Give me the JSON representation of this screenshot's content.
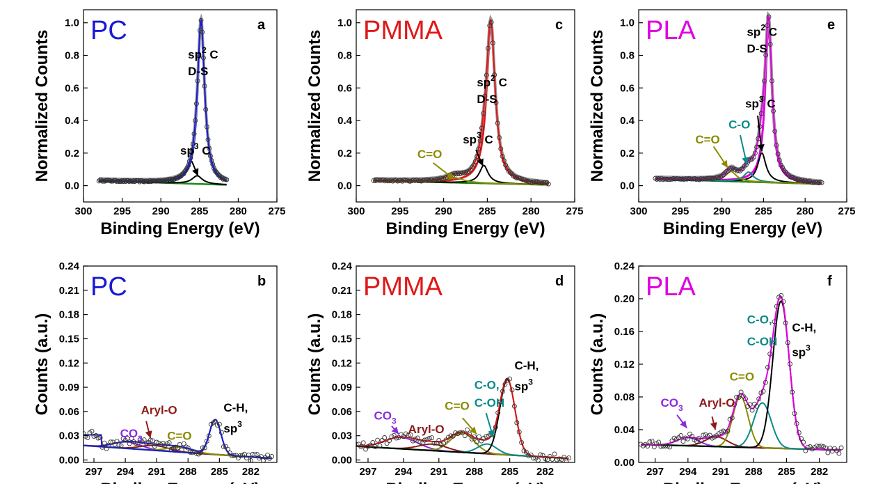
{
  "chart_data": [
    {
      "panel": "a",
      "type": "line",
      "polymer": "PC",
      "polymer_color": "#1a1ad6",
      "xlabel": "Binding Energy (eV)",
      "ylabel": "Normalized Counts",
      "xlim": [
        300,
        275
      ],
      "ylim": [
        -0.1,
        1.08
      ],
      "xticks": [
        300,
        295,
        290,
        285,
        280,
        275
      ],
      "xtick_labels": [
        "300",
        "295",
        "290",
        "285",
        "280",
        "275"
      ],
      "yticks": [
        0.0,
        0.2,
        0.4,
        0.6,
        0.8,
        1.0
      ],
      "ytick_labels": [
        "0.0",
        "0.2",
        "0.4",
        "0.6",
        "0.8",
        "1.0"
      ],
      "fit_color": "#1a1ad6",
      "baseline": [
        0.03,
        0.005
      ],
      "data_range": [
        298,
        281.5
      ],
      "peaks": [
        {
          "label": "sp2 C D-S",
          "center": 284.8,
          "amp": 0.97,
          "width": 0.55,
          "color": "#1a1ad6"
        },
        {
          "label": "sp3 C",
          "center": 285.3,
          "amp": 0.05,
          "width": 0.8,
          "color": "#000000"
        }
      ],
      "annotations": [
        {
          "key": "sp2",
          "text": "sp",
          "sup": "2",
          "after": " C",
          "line2": "D-S",
          "color": "#000000",
          "x": 286.5,
          "y": 0.78
        },
        {
          "key": "sp3",
          "text": "sp",
          "sup": "3",
          "after": " C",
          "color": "#000000",
          "x": 287.5,
          "y": 0.19,
          "arrow": [
            286,
            0.15,
            285.2,
            0.06
          ],
          "arrow_color": "#000000"
        }
      ]
    },
    {
      "panel": "b",
      "type": "line",
      "polymer": "PC",
      "polymer_color": "#1a1ad6",
      "xlabel": "Binding Energy (eV)",
      "ylabel": "Counts (a.u.)",
      "xlim": [
        298,
        279.5
      ],
      "ylim": [
        -0.003,
        0.24
      ],
      "xticks": [
        297,
        294,
        291,
        288,
        285,
        282
      ],
      "xtick_labels": [
        "297",
        "294",
        "291",
        "288",
        "285",
        "282"
      ],
      "yticks": [
        0.0,
        0.03,
        0.06,
        0.09,
        0.12,
        0.15,
        0.18,
        0.21,
        0.24
      ],
      "ytick_labels": [
        "0.00",
        "0.03",
        "0.06",
        "0.09",
        "0.12",
        "0.15",
        "0.18",
        "0.21",
        "0.24"
      ],
      "fit_color": "#1a1ad6",
      "baseline": [
        0.018,
        0.002
      ],
      "data_range": [
        298,
        280
      ],
      "peaks": [
        {
          "label": "CO3",
          "center": 293.8,
          "amp": 0.008,
          "width": 1.3,
          "color": "#8a2be2"
        },
        {
          "label": "Aryl-O",
          "center": 291.2,
          "amp": 0.006,
          "width": 1.3,
          "color": "#8b1a1a"
        },
        {
          "label": "C=O",
          "center": 288.7,
          "amp": 0.006,
          "width": 1.2,
          "color": "#8b8b00"
        },
        {
          "label": "C-H, sp3",
          "center": 285.4,
          "amp": 0.043,
          "width": 0.55,
          "color": "#1a1ad6"
        }
      ],
      "step": {
        "x_end": 296.3,
        "y_high": 0.031
      },
      "annotations": [
        {
          "key": "co3",
          "text": "CO",
          "sub": "3",
          "color": "#8a2be2",
          "x": 294.5,
          "y": 0.028
        },
        {
          "key": "arylo",
          "text": "Aryl-O",
          "color": "#8b1a1a",
          "x": 292.5,
          "y": 0.057,
          "arrow": [
            292.0,
            0.048,
            291.6,
            0.027
          ],
          "arrow_color": "#8b1a1a"
        },
        {
          "key": "co",
          "text": "C=O",
          "color": "#8b8b00",
          "x": 290.0,
          "y": 0.025
        },
        {
          "key": "ch",
          "text": "C-H,",
          "color": "#000000",
          "x": 284.6,
          "y": 0.06
        },
        {
          "key": "sp3b",
          "text": "sp",
          "sup": "3",
          "color": "#000000",
          "x": 284.6,
          "y": 0.034
        }
      ]
    },
    {
      "panel": "c",
      "type": "line",
      "polymer": "PMMA",
      "polymer_color": "#e01818",
      "xlabel": "Binding Energy (eV)",
      "ylabel": "Normalized Counts",
      "xlim": [
        300,
        275
      ],
      "ylim": [
        -0.1,
        1.08
      ],
      "xticks": [
        300,
        295,
        290,
        285,
        280,
        275
      ],
      "xtick_labels": [
        "300",
        "295",
        "290",
        "285",
        "280",
        "275"
      ],
      "yticks": [
        0.0,
        0.2,
        0.4,
        0.6,
        0.8,
        1.0
      ],
      "ytick_labels": [
        "0.0",
        "0.2",
        "0.4",
        "0.6",
        "0.8",
        "1.0"
      ],
      "fit_color": "#e01818",
      "baseline": [
        0.03,
        0.005
      ],
      "data_range": [
        298,
        278
      ],
      "peaks": [
        {
          "label": "sp2 C D-S",
          "center": 284.6,
          "amp": 0.96,
          "width": 0.6,
          "color": "#e01818"
        },
        {
          "label": "sp3 C",
          "center": 285.4,
          "amp": 0.11,
          "width": 0.6,
          "color": "#000000"
        },
        {
          "label": "C=O",
          "center": 288.7,
          "amp": 0.03,
          "width": 1.2,
          "color": "#8b8b00"
        }
      ],
      "annotations": [
        {
          "key": "sp2",
          "text": "sp",
          "sup": "2",
          "after": " C",
          "line2": "D-S",
          "color": "#000000",
          "x": 286.2,
          "y": 0.61
        },
        {
          "key": "sp3",
          "text": "sp",
          "sup": "3",
          "after": " C",
          "color": "#000000",
          "x": 287.8,
          "y": 0.26,
          "arrow": [
            286.3,
            0.22,
            285.5,
            0.12
          ],
          "arrow_color": "#000000"
        },
        {
          "key": "co",
          "text": "C=O",
          "color": "#8b8b00",
          "x": 293.0,
          "y": 0.17,
          "arrow": [
            291.2,
            0.14,
            288.8,
            0.04
          ],
          "arrow_color": "#8b8b00"
        }
      ]
    },
    {
      "panel": "d",
      "type": "line",
      "polymer": "PMMA",
      "polymer_color": "#e01818",
      "xlabel": "Binding Energy (eV)",
      "ylabel": "Counts (a.u.)",
      "xlim": [
        298,
        279.5
      ],
      "ylim": [
        -0.003,
        0.24
      ],
      "xticks": [
        297,
        294,
        291,
        288,
        285,
        282
      ],
      "xtick_labels": [
        "297",
        "294",
        "291",
        "288",
        "285",
        "282"
      ],
      "yticks": [
        0.0,
        0.03,
        0.06,
        0.09,
        0.12,
        0.15,
        0.18,
        0.21,
        0.24
      ],
      "ytick_labels": [
        "0.00",
        "0.03",
        "0.06",
        "0.09",
        "0.12",
        "0.15",
        "0.18",
        "0.21",
        "0.24"
      ],
      "fit_color": "#e01818",
      "baseline": [
        0.017,
        0.002
      ],
      "data_range": [
        298,
        280
      ],
      "peaks": [
        {
          "label": "CO3",
          "center": 294.2,
          "amp": 0.014,
          "width": 1.4,
          "color": "#8a2be2"
        },
        {
          "label": "Aryl-O",
          "center": 291.5,
          "amp": 0.008,
          "width": 1.2,
          "color": "#8b1a1a"
        },
        {
          "label": "C=O",
          "center": 289.0,
          "amp": 0.024,
          "width": 1.0,
          "color": "#8b8b00"
        },
        {
          "label": "C-O, C-OH",
          "center": 286.9,
          "amp": 0.012,
          "width": 0.8,
          "color": "#0a8a8a"
        },
        {
          "label": "C-H, sp3",
          "center": 285.2,
          "amp": 0.093,
          "width": 0.65,
          "color": "#000000"
        }
      ],
      "annotations": [
        {
          "key": "co3",
          "text": "CO",
          "sub": "3",
          "color": "#8a2be2",
          "x": 296.5,
          "y": 0.05,
          "arrow": [
            295.0,
            0.042,
            294.4,
            0.032
          ],
          "arrow_color": "#8a2be2"
        },
        {
          "key": "arylo",
          "text": "Aryl-O",
          "color": "#8b1a1a",
          "x": 293.6,
          "y": 0.033
        },
        {
          "key": "co",
          "text": "C=O",
          "color": "#8b8b00",
          "x": 290.5,
          "y": 0.062,
          "arrow": [
            289.0,
            0.052,
            287.8,
            0.032
          ],
          "arrow_color": "#8b8b00"
        },
        {
          "key": "coh1",
          "text": "C-O,",
          "color": "#0a8a8a",
          "x": 288.0,
          "y": 0.088
        },
        {
          "key": "coh2",
          "text": "C-OH",
          "color": "#0a8a8a",
          "x": 288.0,
          "y": 0.066,
          "arrow": [
            287.0,
            0.058,
            286.4,
            0.028
          ],
          "arrow_color": "#0a8a8a"
        },
        {
          "key": "ch",
          "text": "C-H,",
          "color": "#000000",
          "x": 284.6,
          "y": 0.112
        },
        {
          "key": "sp3b",
          "text": "sp",
          "sup": "3",
          "color": "#000000",
          "x": 284.6,
          "y": 0.086
        }
      ]
    },
    {
      "panel": "e",
      "type": "line",
      "polymer": "PLA",
      "polymer_color": "#e000e0",
      "xlabel": "Binding Energy (eV)",
      "ylabel": "Normalized Counts",
      "xlim": [
        300,
        275
      ],
      "ylim": [
        -0.1,
        1.08
      ],
      "xticks": [
        300,
        295,
        290,
        285,
        280,
        275
      ],
      "xtick_labels": [
        "300",
        "295",
        "290",
        "285",
        "280",
        "275"
      ],
      "yticks": [
        0.0,
        0.2,
        0.4,
        0.6,
        0.8,
        1.0
      ],
      "ytick_labels": [
        "0.0",
        "0.2",
        "0.4",
        "0.6",
        "0.8",
        "1.0"
      ],
      "fit_color": "#e000e0",
      "baseline": [
        0.04,
        0.01
      ],
      "data_range": [
        298,
        278
      ],
      "peaks": [
        {
          "label": "sp2 C D-S",
          "center": 284.4,
          "amp": 0.95,
          "width": 0.5,
          "color": "#e000e0"
        },
        {
          "label": "sp3 C",
          "center": 285.2,
          "amp": 0.18,
          "width": 0.6,
          "color": "#000000"
        },
        {
          "label": "C-O",
          "center": 286.8,
          "amp": 0.06,
          "width": 0.7,
          "color": "#0a8a8a"
        },
        {
          "label": "C=O",
          "center": 288.9,
          "amp": 0.06,
          "width": 0.8,
          "color": "#8b8b00"
        }
      ],
      "annotations": [
        {
          "key": "sp2",
          "text": "sp",
          "sup": "2",
          "after": " C",
          "line2": "D-S",
          "color": "#000000",
          "x": 287.0,
          "y": 0.92
        },
        {
          "key": "sp3",
          "text": "sp",
          "sup": "3",
          "after": " C",
          "color": "#000000",
          "x": 287.2,
          "y": 0.48,
          "arrow": [
            285.7,
            0.43,
            285.2,
            0.21
          ],
          "arrow_color": "#000000"
        },
        {
          "key": "co_teal",
          "text": "C-O",
          "color": "#0a8a8a",
          "x": 289.2,
          "y": 0.35,
          "arrow": [
            287.8,
            0.31,
            287.0,
            0.13
          ],
          "arrow_color": "#0a8a8a"
        },
        {
          "key": "co",
          "text": "C=O",
          "color": "#8b8b00",
          "x": 293.2,
          "y": 0.26,
          "arrow": [
            291.0,
            0.24,
            289.3,
            0.11
          ],
          "arrow_color": "#8b8b00"
        }
      ]
    },
    {
      "panel": "f",
      "type": "line",
      "polymer": "PLA",
      "polymer_color": "#e000e0",
      "xlabel": "Binding Energy (eV)",
      "ylabel": "Counts (a.u.)",
      "xlim": [
        298.5,
        279.5
      ],
      "ylim": [
        0.0,
        0.24
      ],
      "xticks": [
        297,
        294,
        291,
        288,
        285,
        282
      ],
      "xtick_labels": [
        "297",
        "294",
        "291",
        "288",
        "285",
        "282"
      ],
      "yticks": [
        0.0,
        0.04,
        0.08,
        0.12,
        0.16,
        0.2,
        0.24
      ],
      "ytick_labels": [
        "0.00",
        "0.04",
        "0.08",
        "0.12",
        "0.16",
        "0.20",
        "0.24"
      ],
      "fit_color": "#e000e0",
      "baseline": [
        0.022,
        0.015
      ],
      "data_range": [
        298.3,
        280
      ],
      "peaks": [
        {
          "label": "CO3",
          "center": 294.0,
          "amp": 0.01,
          "width": 1.0,
          "color": "#8a2be2"
        },
        {
          "label": "Aryl-O",
          "center": 291.4,
          "amp": 0.012,
          "width": 1.0,
          "color": "#8b1a1a"
        },
        {
          "label": "C=O",
          "center": 289.2,
          "amp": 0.062,
          "width": 0.7,
          "color": "#8b8b00"
        },
        {
          "label": "C-O, C-OH",
          "center": 287.2,
          "amp": 0.055,
          "width": 0.8,
          "color": "#0a8a8a"
        },
        {
          "label": "C-H, sp3",
          "center": 285.5,
          "amp": 0.18,
          "width": 0.75,
          "color": "#000000"
        }
      ],
      "annotations": [
        {
          "key": "co3",
          "text": "CO",
          "sub": "3",
          "color": "#8a2be2",
          "x": 296.5,
          "y": 0.068,
          "arrow": [
            295.0,
            0.058,
            294.1,
            0.042
          ],
          "arrow_color": "#8a2be2"
        },
        {
          "key": "arylo",
          "text": "Aryl-O",
          "color": "#8b1a1a",
          "x": 293.0,
          "y": 0.068,
          "arrow": [
            291.8,
            0.056,
            291.5,
            0.04
          ],
          "arrow_color": "#8b1a1a"
        },
        {
          "key": "co",
          "text": "C=O",
          "color": "#8b8b00",
          "x": 290.2,
          "y": 0.1
        },
        {
          "key": "coh1",
          "text": "C-O,",
          "color": "#0a8a8a",
          "x": 288.6,
          "y": 0.17
        },
        {
          "key": "coh2",
          "text": "C-OH",
          "color": "#0a8a8a",
          "x": 288.6,
          "y": 0.143
        },
        {
          "key": "ch",
          "text": "C-H,",
          "color": "#000000",
          "x": 284.5,
          "y": 0.16
        },
        {
          "key": "sp3b",
          "text": "sp",
          "sup": "3",
          "color": "#000000",
          "x": 284.5,
          "y": 0.13
        }
      ]
    }
  ]
}
